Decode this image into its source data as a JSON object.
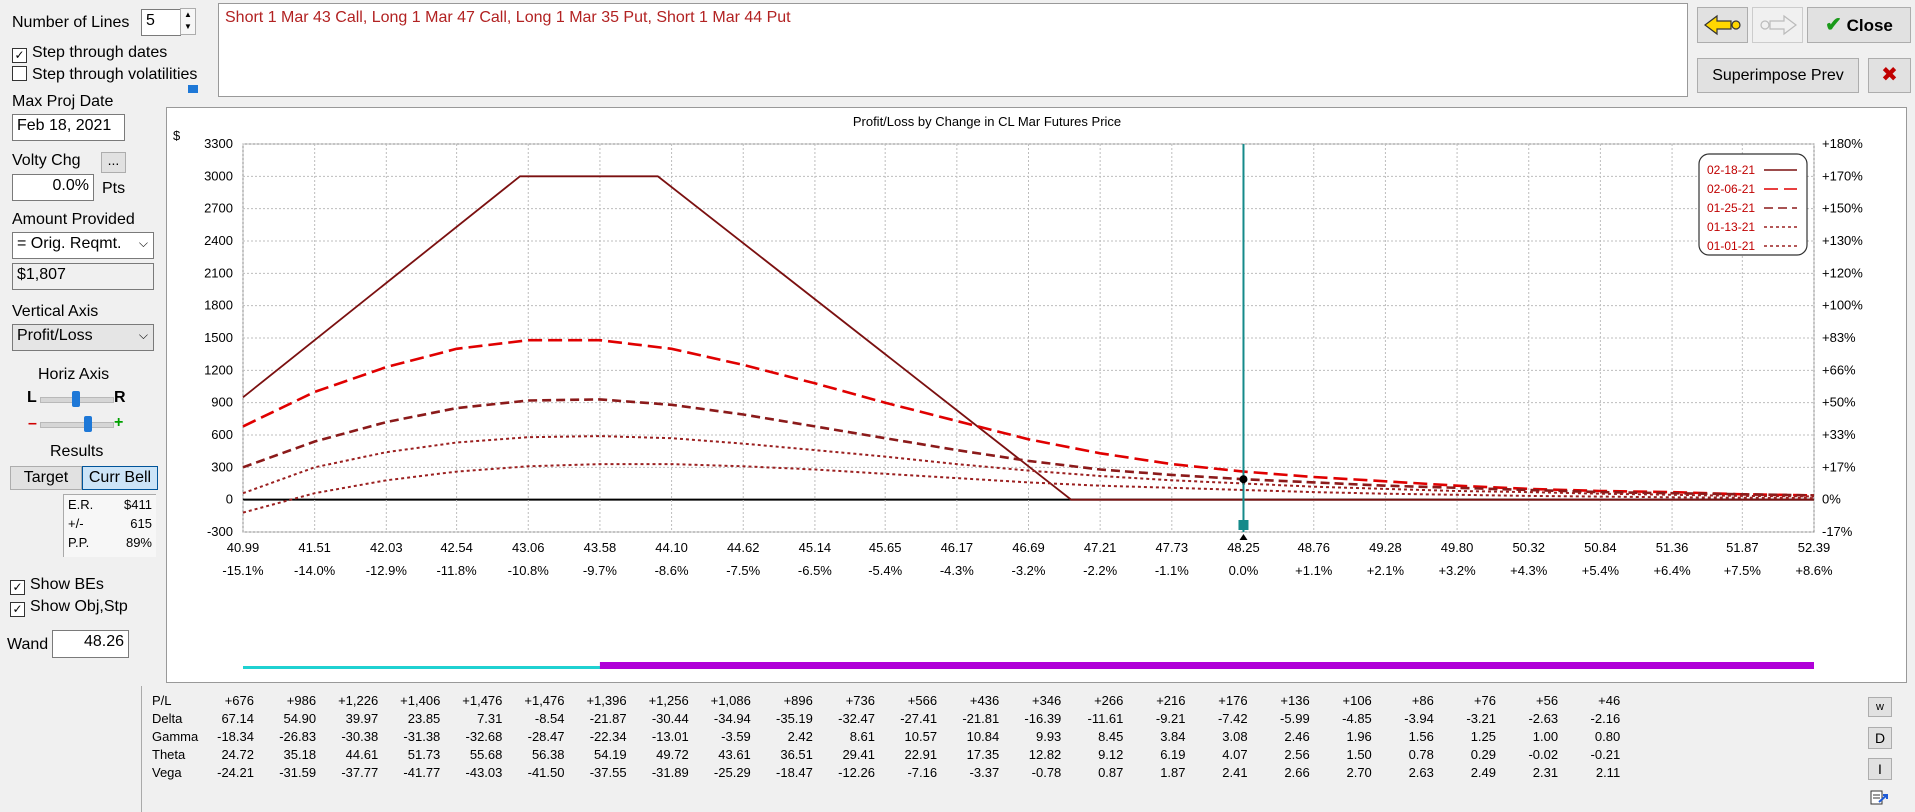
{
  "controls": {
    "num_lines_label": "Number of Lines",
    "num_lines_value": "5",
    "step_dates_label": "Step through dates",
    "step_dates_checked": true,
    "step_vols_label": "Step through volatilities",
    "step_vols_checked": false,
    "max_proj_date_label": "Max Proj Date",
    "max_proj_date_value": "Feb 18, 2021",
    "volty_chg_label": "Volty Chg",
    "volty_btn": "...",
    "volty_value": "0.0%",
    "volty_unit": "Pts",
    "amount_provided_label": "Amount Provided",
    "amount_select": "= Orig. Reqmt.",
    "amount_value": "$1,807",
    "vertical_axis_label": "Vertical Axis",
    "vertical_axis_select": "Profit/Loss",
    "horiz_axis_label": "Horiz Axis",
    "horiz_l": "L",
    "horiz_r": "R",
    "minus": "–",
    "plus": "+",
    "results_label": "Results",
    "target_btn": "Target",
    "curr_bell_btn": "Curr Bell",
    "er_label": "E.R.",
    "er_value": "$411",
    "pm_label": "+/-",
    "pm_value": "615",
    "pp_label": "P.P.",
    "pp_value": "89%",
    "show_bes_label": "Show BEs",
    "show_bes_checked": true,
    "show_obj_label": "Show Obj,Stp",
    "show_obj_checked": true,
    "wand_label": "Wand",
    "wand_value": "48.26"
  },
  "strategy_text": "Short 1 Mar 43 Call, Long 1 Mar 47 Call, Long 1 Mar 35 Put, Short 1 Mar 44 Put",
  "top_buttons": {
    "close_label": "Close",
    "superimpose_label": "Superimpose Prev",
    "close_x": "✖"
  },
  "chart_data": {
    "type": "line",
    "title": "Profit/Loss by Change in CL Mar Futures Price",
    "y_unit": "$",
    "xlim": [
      40.99,
      52.39
    ],
    "ylim": [
      -300,
      3300
    ],
    "y_ticks": [
      3300,
      3000,
      2700,
      2400,
      2100,
      1800,
      1500,
      1200,
      900,
      600,
      300,
      0,
      -300
    ],
    "y2_ticks": [
      "+180%",
      "+170%",
      "+150%",
      "+130%",
      "+120%",
      "+100%",
      "+83%",
      "+66%",
      "+50%",
      "+33%",
      "+17%",
      "0%",
      "-17%"
    ],
    "x_ticks": [
      "40.99",
      "41.51",
      "42.03",
      "42.54",
      "43.06",
      "43.58",
      "44.10",
      "44.62",
      "45.14",
      "45.65",
      "46.17",
      "46.69",
      "47.21",
      "47.73",
      "48.25",
      "48.76",
      "49.28",
      "49.80",
      "50.32",
      "50.84",
      "51.36",
      "51.87",
      "52.39"
    ],
    "x_pct_ticks": [
      "-15.1%",
      "-14.0%",
      "-12.9%",
      "-11.8%",
      "-10.8%",
      "-9.7%",
      "-8.6%",
      "-7.5%",
      "-6.5%",
      "-5.4%",
      "-4.3%",
      "-3.2%",
      "-2.2%",
      "-1.1%",
      "0.0%",
      "+1.1%",
      "+2.1%",
      "+3.2%",
      "+4.3%",
      "+5.4%",
      "+6.4%",
      "+7.5%",
      "+8.6%"
    ],
    "current_price": 48.25,
    "series": [
      {
        "name": "02-18-21",
        "color": "#7b1010",
        "style": "solid",
        "x": [
          40.99,
          43.0,
          44.0,
          47.0,
          52.39
        ],
        "y": [
          950,
          3000,
          3000,
          0,
          0
        ]
      },
      {
        "name": "02-06-21",
        "color": "#e00000",
        "style": "longdash",
        "x": [
          40.99,
          41.51,
          42.03,
          42.54,
          43.06,
          43.58,
          44.1,
          44.62,
          45.14,
          45.65,
          46.17,
          46.69,
          47.21,
          47.73,
          48.25,
          48.76,
          49.28,
          49.8,
          50.32,
          50.84,
          51.36,
          51.87,
          52.39
        ],
        "y": [
          680,
          1000,
          1230,
          1400,
          1480,
          1480,
          1400,
          1250,
          1080,
          900,
          730,
          560,
          430,
          330,
          260,
          210,
          170,
          130,
          100,
          80,
          70,
          50,
          40
        ]
      },
      {
        "name": "01-25-21",
        "color": "#8b1a1a",
        "style": "dash",
        "x": [
          40.99,
          41.51,
          42.03,
          42.54,
          43.06,
          43.58,
          44.1,
          44.62,
          45.14,
          45.65,
          46.17,
          46.69,
          47.21,
          47.73,
          48.25,
          48.76,
          49.28,
          49.8,
          50.32,
          50.84,
          51.36,
          51.87,
          52.39
        ],
        "y": [
          300,
          540,
          720,
          850,
          920,
          930,
          880,
          790,
          680,
          570,
          460,
          360,
          280,
          230,
          190,
          160,
          130,
          110,
          90,
          70,
          60,
          50,
          40
        ]
      },
      {
        "name": "01-13-21",
        "color": "#9b2020",
        "style": "dot",
        "x": [
          40.99,
          41.51,
          42.03,
          42.54,
          43.06,
          43.58,
          44.1,
          44.62,
          45.14,
          45.65,
          46.17,
          46.69,
          47.21,
          47.73,
          48.25,
          48.76,
          49.28,
          49.8,
          50.32,
          50.84,
          51.36,
          51.87,
          52.39
        ],
        "y": [
          60,
          300,
          440,
          530,
          580,
          590,
          570,
          520,
          460,
          400,
          330,
          270,
          220,
          180,
          150,
          120,
          100,
          80,
          70,
          55,
          45,
          35,
          30
        ]
      },
      {
        "name": "01-01-21",
        "color": "#9b2020",
        "style": "dot",
        "x": [
          40.99,
          41.51,
          42.03,
          42.54,
          43.06,
          43.58,
          44.1,
          44.62,
          45.14,
          45.65,
          46.17,
          46.69,
          47.21,
          47.73,
          48.25,
          48.76,
          49.28,
          49.8,
          50.32,
          50.84,
          51.36,
          51.87,
          52.39
        ],
        "y": [
          -120,
          60,
          180,
          260,
          310,
          330,
          330,
          310,
          280,
          240,
          200,
          160,
          130,
          110,
          90,
          70,
          55,
          45,
          35,
          28,
          22,
          18,
          15
        ]
      }
    ],
    "legend_position": "top-right"
  },
  "greeks": {
    "row_names": [
      "P/L",
      "Delta",
      "Gamma",
      "Theta",
      "Vega"
    ],
    "rows": [
      [
        "+676",
        "+986",
        "+1,226",
        "+1,406",
        "+1,476",
        "+1,476",
        "+1,396",
        "+1,256",
        "+1,086",
        "+896",
        "+736",
        "+566",
        "+436",
        "+346",
        "+266",
        "+216",
        "+176",
        "+136",
        "+106",
        "+86",
        "+76",
        "+56",
        "+46"
      ],
      [
        "67.14",
        "54.90",
        "39.97",
        "23.85",
        "7.31",
        "-8.54",
        "-21.87",
        "-30.44",
        "-34.94",
        "-35.19",
        "-32.47",
        "-27.41",
        "-21.81",
        "-16.39",
        "-11.61",
        "-9.21",
        "-7.42",
        "-5.99",
        "-4.85",
        "-3.94",
        "-3.21",
        "-2.63",
        "-2.16"
      ],
      [
        "-18.34",
        "-26.83",
        "-30.38",
        "-31.38",
        "-32.68",
        "-28.47",
        "-22.34",
        "-13.01",
        "-3.59",
        "2.42",
        "8.61",
        "10.57",
        "10.84",
        "9.93",
        "8.45",
        "3.84",
        "3.08",
        "2.46",
        "1.96",
        "1.56",
        "1.25",
        "1.00",
        "0.80"
      ],
      [
        "24.72",
        "35.18",
        "44.61",
        "51.73",
        "55.68",
        "56.38",
        "54.19",
        "49.72",
        "43.61",
        "36.51",
        "29.41",
        "22.91",
        "17.35",
        "12.82",
        "9.12",
        "6.19",
        "4.07",
        "2.56",
        "1.50",
        "0.78",
        "0.29",
        "-0.02",
        "-0.21"
      ],
      [
        "-24.21",
        "-31.59",
        "-37.77",
        "-41.77",
        "-43.03",
        "-41.50",
        "-37.55",
        "-31.89",
        "-25.29",
        "-18.47",
        "-12.26",
        "-7.16",
        "-3.37",
        "-0.78",
        "0.87",
        "1.87",
        "2.41",
        "2.66",
        "2.70",
        "2.63",
        "2.49",
        "2.31",
        "2.11"
      ]
    ],
    "side_buttons": [
      "w",
      "D",
      "I"
    ]
  }
}
